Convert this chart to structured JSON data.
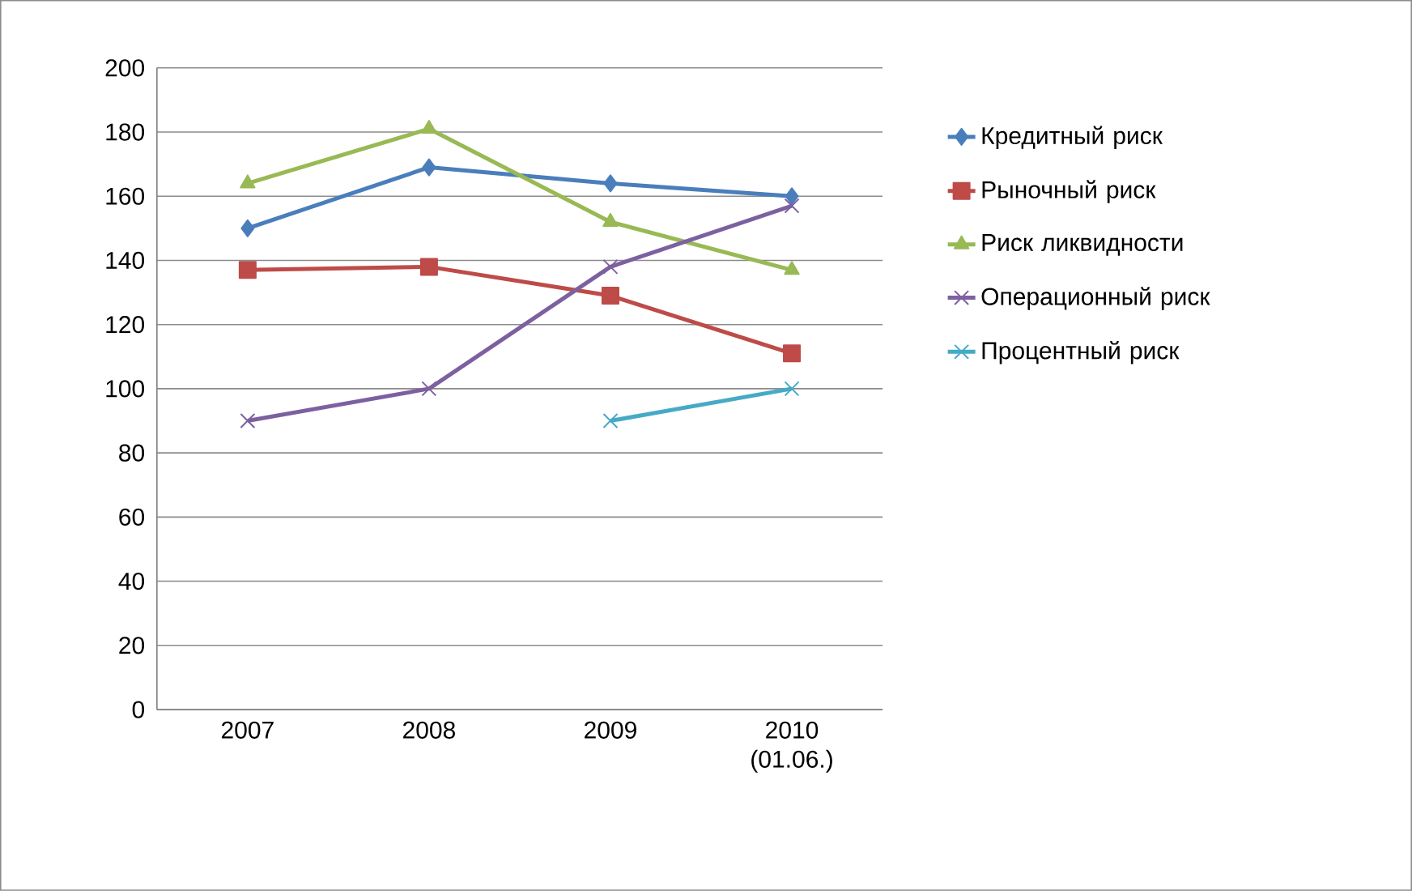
{
  "chart_data": {
    "type": "line",
    "categories": [
      "2007",
      "2008",
      "2009",
      "2010 (01.06.)"
    ],
    "series": [
      {
        "name": "Кредитный риск",
        "color": "#4a7ebb",
        "marker": "diamond",
        "values": [
          150,
          169,
          164,
          160
        ]
      },
      {
        "name": "Рыночный риск",
        "color": "#be4b48",
        "marker": "square",
        "values": [
          137,
          138,
          129,
          111
        ]
      },
      {
        "name": "Риск ликвидности",
        "color": "#98b954",
        "marker": "triangle",
        "values": [
          164,
          181,
          152,
          137
        ]
      },
      {
        "name": "Операционный риск",
        "color": "#7d60a0",
        "marker": "cross",
        "values": [
          90,
          100,
          138,
          157
        ]
      },
      {
        "name": "Процентный риск",
        "color": "#46aac5",
        "marker": "cross",
        "values": [
          null,
          null,
          90,
          100
        ]
      }
    ],
    "ylim": [
      0,
      200
    ],
    "yticks": [
      0,
      20,
      40,
      60,
      80,
      100,
      120,
      140,
      160,
      180,
      200
    ],
    "grid": "y",
    "legend": "right"
  }
}
